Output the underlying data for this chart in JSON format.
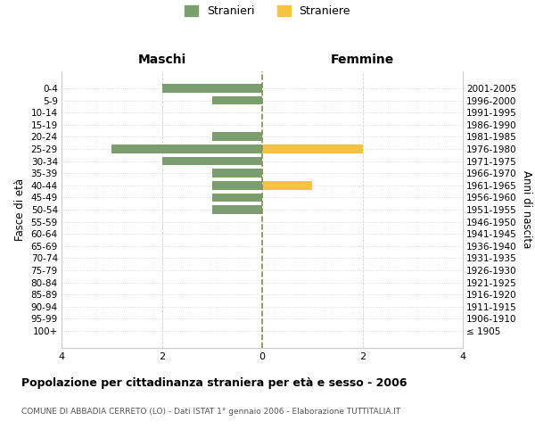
{
  "age_groups": [
    "100+",
    "95-99",
    "90-94",
    "85-89",
    "80-84",
    "75-79",
    "70-74",
    "65-69",
    "60-64",
    "55-59",
    "50-54",
    "45-49",
    "40-44",
    "35-39",
    "30-34",
    "25-29",
    "20-24",
    "15-19",
    "10-14",
    "5-9",
    "0-4"
  ],
  "birth_years": [
    "≤ 1905",
    "1906-1910",
    "1911-1915",
    "1916-1920",
    "1921-1925",
    "1926-1930",
    "1931-1935",
    "1936-1940",
    "1941-1945",
    "1946-1950",
    "1951-1955",
    "1956-1960",
    "1961-1965",
    "1966-1970",
    "1971-1975",
    "1976-1980",
    "1981-1985",
    "1986-1990",
    "1991-1995",
    "1996-2000",
    "2001-2005"
  ],
  "maschi_stranieri": [
    0,
    0,
    0,
    0,
    0,
    0,
    0,
    0,
    0,
    0,
    1,
    1,
    1,
    1,
    2,
    3,
    1,
    0,
    0,
    1,
    2
  ],
  "femmine_straniere": [
    0,
    0,
    0,
    0,
    0,
    0,
    0,
    0,
    0,
    0,
    0,
    0,
    1,
    0,
    0,
    2,
    0,
    0,
    0,
    0,
    0
  ],
  "color_maschi": "#7a9e6e",
  "color_femmine": "#f5c242",
  "title": "Popolazione per cittadinanza straniera per età e sesso - 2006",
  "subtitle": "COMUNE DI ABBADIA CERRETO (LO) - Dati ISTAT 1° gennaio 2006 - Elaborazione TUTTITALIA.IT",
  "legend_maschi": "Stranieri",
  "legend_femmine": "Straniere",
  "xlabel_left": "Maschi",
  "xlabel_right": "Femmine",
  "ylabel_left": "Fasce di età",
  "ylabel_right": "Anni di nascita",
  "xlim": 4,
  "background_color": "#ffffff",
  "grid_color": "#cccccc",
  "axis_center_color": "#8b8b5a"
}
